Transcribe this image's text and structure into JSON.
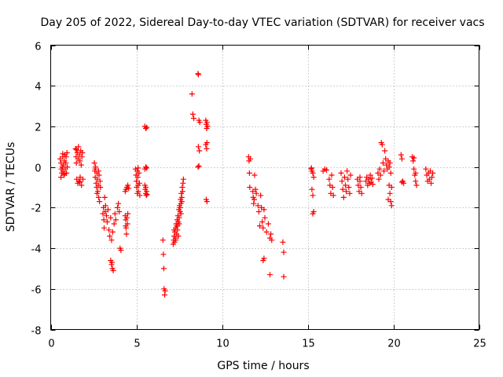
{
  "chart_data": {
    "type": "scatter",
    "title": "Day 205 of 2022, Sidereal Day-to-day VTEC variation (SDTVAR) for receiver vacs",
    "xlabel": "GPS time / hours",
    "ylabel": "SDTVAR / TECUs",
    "xlim": [
      0,
      25
    ],
    "ylim": [
      -8,
      6
    ],
    "xticks": [
      0,
      5,
      10,
      15,
      20,
      25
    ],
    "yticks": [
      -8,
      -6,
      -4,
      -2,
      0,
      2,
      4,
      6
    ],
    "xtick_labels": [
      "0",
      "5",
      "10",
      "15",
      "20",
      "25"
    ],
    "ytick_labels": [
      "-8",
      "-6",
      "-4",
      "-2",
      "0",
      "2",
      "4",
      "6"
    ],
    "grid": true,
    "marker": "+",
    "color": "#ff0000",
    "series": [
      {
        "name": "SDTVAR",
        "points": [
          [
            0.55,
            0.4
          ],
          [
            0.6,
            0.2
          ],
          [
            0.62,
            -0.1
          ],
          [
            0.65,
            -0.3
          ],
          [
            0.68,
            0.0
          ],
          [
            0.7,
            0.5
          ],
          [
            0.72,
            -0.2
          ],
          [
            0.75,
            0.1
          ],
          [
            0.78,
            -0.4
          ],
          [
            0.8,
            0.3
          ],
          [
            0.82,
            0.6
          ],
          [
            0.85,
            -0.1
          ],
          [
            0.88,
            0.2
          ],
          [
            0.9,
            0.5
          ],
          [
            0.92,
            -0.3
          ],
          [
            0.95,
            0.7
          ],
          [
            0.97,
            0.0
          ],
          [
            0.6,
            -0.5
          ],
          [
            0.7,
            0.65
          ],
          [
            0.8,
            -0.35
          ],
          [
            1.45,
            0.9
          ],
          [
            1.48,
            0.5
          ],
          [
            1.5,
            0.2
          ],
          [
            1.52,
            -0.6
          ],
          [
            1.55,
            0.7
          ],
          [
            1.58,
            -0.8
          ],
          [
            1.6,
            0.4
          ],
          [
            1.62,
            1.0
          ],
          [
            1.65,
            -0.7
          ],
          [
            1.68,
            0.6
          ],
          [
            1.7,
            0.3
          ],
          [
            1.72,
            -0.5
          ],
          [
            1.75,
            0.8
          ],
          [
            1.78,
            0.1
          ],
          [
            1.8,
            -0.9
          ],
          [
            1.82,
            0.5
          ],
          [
            1.85,
            0.7
          ],
          [
            1.88,
            -0.6
          ],
          [
            1.5,
            0.85
          ],
          [
            1.7,
            -0.75
          ],
          [
            2.55,
            0.2
          ],
          [
            2.58,
            -0.2
          ],
          [
            2.6,
            -0.5
          ],
          [
            2.62,
            0.0
          ],
          [
            2.65,
            -0.8
          ],
          [
            2.68,
            -1.0
          ],
          [
            2.7,
            -0.3
          ],
          [
            2.72,
            -0.6
          ],
          [
            2.75,
            -1.2
          ],
          [
            2.78,
            -0.9
          ],
          [
            2.8,
            -1.5
          ],
          [
            2.82,
            -0.4
          ],
          [
            2.85,
            -1.7
          ],
          [
            2.88,
            -0.7
          ],
          [
            2.9,
            -1.0
          ],
          [
            2.6,
            -0.1
          ],
          [
            2.7,
            -1.3
          ],
          [
            2.8,
            -0.2
          ],
          [
            3.05,
            -2.3
          ],
          [
            3.08,
            -2.0
          ],
          [
            3.1,
            -2.6
          ],
          [
            3.12,
            -3.0
          ],
          [
            3.15,
            -1.5
          ],
          [
            3.18,
            -2.2
          ],
          [
            3.2,
            -1.9
          ],
          [
            3.25,
            -2.4
          ],
          [
            3.3,
            -2.7
          ],
          [
            3.35,
            -2.1
          ],
          [
            3.4,
            -3.1
          ],
          [
            3.45,
            -3.4
          ],
          [
            3.5,
            -2.5
          ],
          [
            3.55,
            -3.6
          ],
          [
            3.5,
            -4.6
          ],
          [
            3.55,
            -4.8
          ],
          [
            3.6,
            -5.0
          ],
          [
            3.65,
            -5.1
          ],
          [
            3.58,
            -4.7
          ],
          [
            3.62,
            -3.2
          ],
          [
            3.7,
            -2.8
          ],
          [
            3.75,
            -2.3
          ],
          [
            3.8,
            -2.6
          ],
          [
            3.9,
            -2.0
          ],
          [
            3.95,
            -1.8
          ],
          [
            4.0,
            -2.2
          ],
          [
            4.05,
            -4.0
          ],
          [
            4.1,
            -4.1
          ],
          [
            4.35,
            -2.4
          ],
          [
            4.38,
            -2.6
          ],
          [
            4.4,
            -3.0
          ],
          [
            4.42,
            -3.3
          ],
          [
            4.45,
            -2.5
          ],
          [
            4.48,
            -2.8
          ],
          [
            4.5,
            -2.3
          ],
          [
            4.35,
            -1.2
          ],
          [
            4.4,
            -1.1
          ],
          [
            4.45,
            -1.0
          ],
          [
            4.5,
            -0.9
          ],
          [
            4.55,
            -1.05
          ],
          [
            4.38,
            -2.9
          ],
          [
            4.95,
            -0.1
          ],
          [
            4.98,
            -0.4
          ],
          [
            5.0,
            -0.7
          ],
          [
            5.02,
            -1.0
          ],
          [
            5.05,
            -0.2
          ],
          [
            5.08,
            -0.5
          ],
          [
            5.1,
            -0.9
          ],
          [
            5.12,
            -1.2
          ],
          [
            5.15,
            -0.3
          ],
          [
            5.18,
            -0.8
          ],
          [
            5.2,
            -1.4
          ],
          [
            5.05,
            -1.3
          ],
          [
            5.1,
            -0.05
          ],
          [
            5.5,
            2.0
          ],
          [
            5.55,
            1.9
          ],
          [
            5.6,
            1.95
          ],
          [
            5.5,
            -0.1
          ],
          [
            5.55,
            0.0
          ],
          [
            5.6,
            -0.05
          ],
          [
            5.5,
            -0.9
          ],
          [
            5.52,
            -1.1
          ],
          [
            5.55,
            -1.3
          ],
          [
            5.58,
            -1.4
          ],
          [
            5.6,
            -1.2
          ],
          [
            5.62,
            -1.35
          ],
          [
            5.55,
            -1.0
          ],
          [
            6.55,
            -3.6
          ],
          [
            6.58,
            -4.3
          ],
          [
            6.6,
            -5.0
          ],
          [
            6.62,
            -6.0
          ],
          [
            6.65,
            -6.3
          ],
          [
            6.68,
            -6.1
          ],
          [
            7.15,
            -3.8
          ],
          [
            7.18,
            -3.6
          ],
          [
            7.2,
            -3.4
          ],
          [
            7.22,
            -3.7
          ],
          [
            7.25,
            -3.2
          ],
          [
            7.28,
            -3.5
          ],
          [
            7.3,
            -3.0
          ],
          [
            7.32,
            -2.8
          ],
          [
            7.35,
            -3.3
          ],
          [
            7.38,
            -2.6
          ],
          [
            7.4,
            -2.9
          ],
          [
            7.42,
            -2.4
          ],
          [
            7.45,
            -2.7
          ],
          [
            7.48,
            -2.1
          ],
          [
            7.5,
            -2.5
          ],
          [
            7.52,
            -1.9
          ],
          [
            7.55,
            -2.2
          ],
          [
            7.58,
            -1.6
          ],
          [
            7.6,
            -1.8
          ],
          [
            7.62,
            -1.3
          ],
          [
            7.65,
            -1.5
          ],
          [
            7.68,
            -1.0
          ],
          [
            7.7,
            -1.2
          ],
          [
            7.72,
            -0.8
          ],
          [
            7.75,
            -0.6
          ],
          [
            7.2,
            -3.1
          ],
          [
            7.3,
            -3.6
          ],
          [
            7.4,
            -3.1
          ],
          [
            7.5,
            -2.8
          ],
          [
            7.6,
            -2.3
          ],
          [
            7.45,
            -3.4
          ],
          [
            7.55,
            -2.0
          ],
          [
            7.65,
            -1.7
          ],
          [
            7.35,
            -2.9
          ],
          [
            8.25,
            3.6
          ],
          [
            8.3,
            2.6
          ],
          [
            8.35,
            2.4
          ],
          [
            8.6,
            4.6
          ],
          [
            8.62,
            4.55
          ],
          [
            8.65,
            2.3
          ],
          [
            8.7,
            2.2
          ],
          [
            8.62,
            1.0
          ],
          [
            8.68,
            0.8
          ],
          [
            8.6,
            0.0
          ],
          [
            8.65,
            0.05
          ],
          [
            9.05,
            2.3
          ],
          [
            9.08,
            2.1
          ],
          [
            9.1,
            1.9
          ],
          [
            9.12,
            2.2
          ],
          [
            9.15,
            2.0
          ],
          [
            9.05,
            1.1
          ],
          [
            9.1,
            0.9
          ],
          [
            9.12,
            1.2
          ],
          [
            9.08,
            -1.6
          ],
          [
            9.12,
            -1.7
          ],
          [
            11.55,
            0.5
          ],
          [
            11.58,
            0.3
          ],
          [
            11.6,
            -0.3
          ],
          [
            11.62,
            -1.0
          ],
          [
            11.65,
            0.4
          ],
          [
            11.8,
            -1.2
          ],
          [
            11.82,
            -1.5
          ],
          [
            11.85,
            -1.8
          ],
          [
            11.88,
            -1.6
          ],
          [
            11.9,
            -0.4
          ],
          [
            11.95,
            -1.1
          ],
          [
            12.0,
            -1.3
          ],
          [
            12.1,
            -1.9
          ],
          [
            12.15,
            -2.2
          ],
          [
            12.2,
            -2.9
          ],
          [
            12.25,
            -1.4
          ],
          [
            12.3,
            -2.0
          ],
          [
            12.35,
            -2.7
          ],
          [
            12.4,
            -3.0
          ],
          [
            12.45,
            -2.1
          ],
          [
            12.5,
            -2.5
          ],
          [
            12.4,
            -4.6
          ],
          [
            12.45,
            -4.5
          ],
          [
            12.6,
            -3.2
          ],
          [
            12.7,
            -2.8
          ],
          [
            12.8,
            -3.5
          ],
          [
            12.85,
            -3.3
          ],
          [
            12.9,
            -3.6
          ],
          [
            12.8,
            -5.3
          ],
          [
            13.55,
            -3.7
          ],
          [
            13.6,
            -4.2
          ],
          [
            13.6,
            -5.4
          ],
          [
            15.2,
            -0.1
          ],
          [
            15.25,
            -0.2
          ],
          [
            15.3,
            -0.3
          ],
          [
            15.35,
            -0.5
          ],
          [
            15.25,
            -1.1
          ],
          [
            15.3,
            -1.4
          ],
          [
            15.3,
            -2.3
          ],
          [
            15.35,
            -2.2
          ],
          [
            15.22,
            -0.05
          ],
          [
            15.9,
            -0.2
          ],
          [
            16.0,
            -0.1
          ],
          [
            16.1,
            -0.15
          ],
          [
            16.25,
            -0.6
          ],
          [
            16.3,
            -0.9
          ],
          [
            16.35,
            -1.3
          ],
          [
            16.4,
            -0.4
          ],
          [
            16.45,
            -1.0
          ],
          [
            16.5,
            -1.4
          ],
          [
            16.95,
            -0.3
          ],
          [
            17.0,
            -0.7
          ],
          [
            17.05,
            -1.1
          ],
          [
            17.1,
            -1.5
          ],
          [
            17.15,
            -0.5
          ],
          [
            17.2,
            -0.9
          ],
          [
            17.25,
            -1.2
          ],
          [
            17.3,
            -0.2
          ],
          [
            17.35,
            -0.6
          ],
          [
            17.4,
            -1.0
          ],
          [
            17.45,
            -1.3
          ],
          [
            17.5,
            -0.4
          ],
          [
            17.9,
            -0.6
          ],
          [
            17.95,
            -0.9
          ],
          [
            18.0,
            -1.2
          ],
          [
            18.05,
            -0.7
          ],
          [
            18.1,
            -1.0
          ],
          [
            18.15,
            -1.3
          ],
          [
            18.05,
            -0.5
          ],
          [
            18.4,
            -0.7
          ],
          [
            18.45,
            -0.5
          ],
          [
            18.5,
            -0.9
          ],
          [
            18.55,
            -0.6
          ],
          [
            18.6,
            -0.8
          ],
          [
            18.65,
            -0.4
          ],
          [
            18.7,
            -0.75
          ],
          [
            18.75,
            -0.55
          ],
          [
            18.8,
            -0.85
          ],
          [
            19.1,
            -0.3
          ],
          [
            19.15,
            -0.6
          ],
          [
            19.2,
            -0.1
          ],
          [
            19.25,
            -0.4
          ],
          [
            19.3,
            1.2
          ],
          [
            19.35,
            1.1
          ],
          [
            19.4,
            0.2
          ],
          [
            19.45,
            -0.2
          ],
          [
            19.5,
            0.8
          ],
          [
            19.55,
            0.4
          ],
          [
            19.6,
            0.1
          ],
          [
            19.65,
            -0.1
          ],
          [
            19.7,
            0.3
          ],
          [
            19.75,
            -0.9
          ],
          [
            19.8,
            -1.3
          ],
          [
            19.85,
            -1.7
          ],
          [
            19.9,
            -1.9
          ],
          [
            19.75,
            0.0
          ],
          [
            19.8,
            0.2
          ],
          [
            19.85,
            -0.3
          ],
          [
            19.9,
            -1.0
          ],
          [
            19.7,
            -1.6
          ],
          [
            20.45,
            0.6
          ],
          [
            20.5,
            0.4
          ],
          [
            20.55,
            -0.7
          ],
          [
            20.6,
            -0.8
          ],
          [
            20.5,
            -0.75
          ],
          [
            21.1,
            0.5
          ],
          [
            21.15,
            0.3
          ],
          [
            21.2,
            -0.1
          ],
          [
            21.25,
            -0.4
          ],
          [
            21.3,
            -0.7
          ],
          [
            21.35,
            -0.9
          ],
          [
            21.2,
            0.45
          ],
          [
            21.3,
            -0.3
          ],
          [
            21.9,
            -0.1
          ],
          [
            21.95,
            -0.4
          ],
          [
            22.0,
            -0.7
          ],
          [
            22.05,
            -0.3
          ],
          [
            22.1,
            -0.6
          ],
          [
            22.15,
            -0.2
          ],
          [
            22.2,
            -0.8
          ],
          [
            22.25,
            -0.5
          ],
          [
            22.3,
            -0.3
          ]
        ]
      }
    ]
  }
}
